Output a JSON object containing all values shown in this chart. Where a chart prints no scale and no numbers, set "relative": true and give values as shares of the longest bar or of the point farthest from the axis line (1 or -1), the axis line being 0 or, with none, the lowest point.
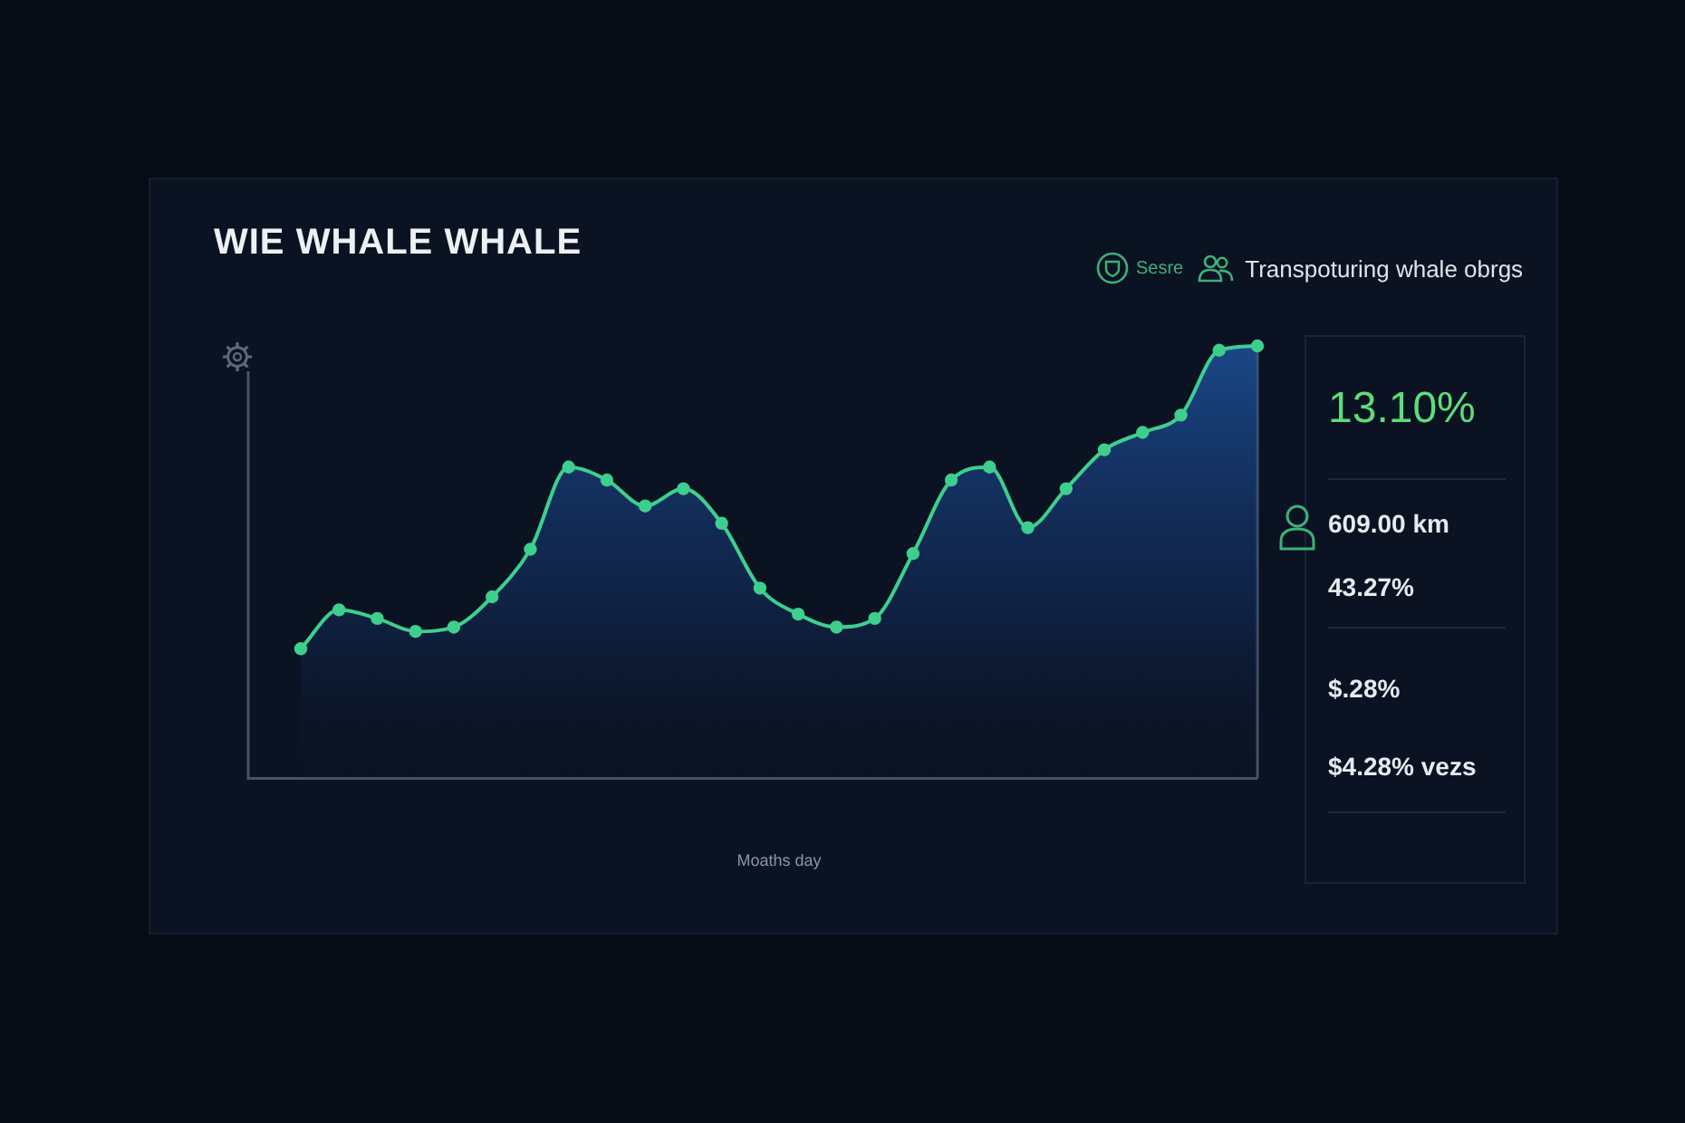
{
  "chart_data": {
    "type": "area",
    "title": "WIE WHALE WHALE",
    "xlabel": "Moaths day",
    "categories": [
      null,
      null,
      null,
      null,
      null,
      null,
      null,
      null,
      null,
      null,
      null,
      null,
      null,
      null,
      null,
      null,
      null,
      null,
      null,
      null,
      null,
      null,
      null,
      null,
      null,
      null
    ],
    "series": [
      {
        "color": "#3ecf8e",
        "values": [
          0.3,
          0.39,
          0.37,
          0.34,
          0.35,
          0.42,
          0.53,
          0.72,
          0.69,
          0.63,
          0.67,
          0.59,
          0.44,
          0.38,
          0.35,
          0.37,
          0.52,
          0.69,
          0.72,
          0.58,
          0.67,
          0.76,
          0.8,
          0.84,
          0.99,
          1.0
        ]
      }
    ],
    "relative": true,
    "marker": "circle",
    "annotations": [
      "Sesre",
      "Transpoturing whale obrgs",
      "13.10%",
      "609.00 km",
      "43.27%",
      "$.28%",
      "$4.28% vezs"
    ]
  }
}
